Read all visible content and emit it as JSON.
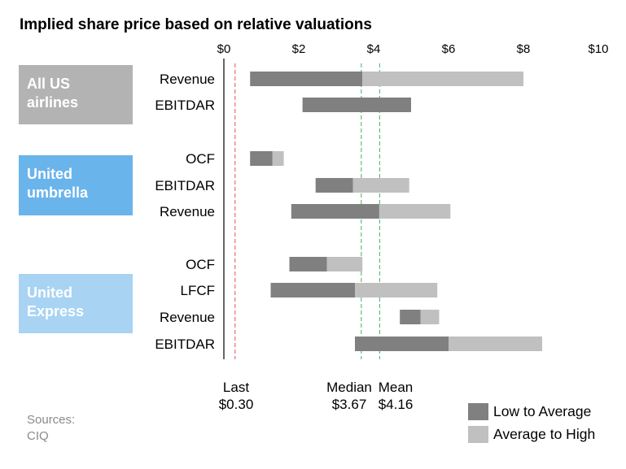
{
  "chart_data": {
    "type": "bar",
    "subtype": "floating-range",
    "title": "Implied share price based on relative valuations",
    "x_axis": {
      "range": [
        0,
        10
      ],
      "ticks": [
        0,
        2,
        4,
        6,
        8,
        10
      ],
      "tick_labels": [
        "$0",
        "$2",
        "$4",
        "$6",
        "$8",
        "$10"
      ],
      "position": "top"
    },
    "groups": [
      {
        "name": "All US airlines",
        "color": "#b3b3b3",
        "rows": [
          {
            "label": "Revenue",
            "low": 0.7,
            "average": 3.7,
            "high": 8.0
          },
          {
            "label": "EBITDAR",
            "low": 2.1,
            "average": 5.0,
            "high": 5.0
          }
        ]
      },
      {
        "name": "United umbrella",
        "color": "#6ab4ec",
        "rows": [
          {
            "label": "OCF",
            "low": 0.7,
            "average": 1.3,
            "high": 1.6
          },
          {
            "label": "EBITDAR",
            "low": 2.45,
            "average": 3.45,
            "high": 4.95
          },
          {
            "label": "Revenue",
            "low": 1.8,
            "average": 4.15,
            "high": 6.05
          }
        ]
      },
      {
        "name": "United Express",
        "color": "#a8d3f3",
        "rows": [
          {
            "label": "OCF",
            "low": 1.75,
            "average": 2.75,
            "high": 3.7
          },
          {
            "label": "LFCF",
            "low": 1.25,
            "average": 3.5,
            "high": 5.7
          },
          {
            "label": "Revenue",
            "low": 4.7,
            "average": 5.25,
            "high": 5.75
          },
          {
            "label": "EBITDAR",
            "low": 3.5,
            "average": 6.0,
            "high": 8.5
          }
        ]
      }
    ],
    "reference_lines": [
      {
        "name": "Last",
        "value": 0.3,
        "value_label": "$0.30",
        "color": "#e05050"
      },
      {
        "name": "Median",
        "value": 3.67,
        "value_label": "$3.67",
        "color": "#40b060"
      },
      {
        "name": "Mean",
        "value": 4.16,
        "value_label": "$4.16",
        "color": "#40b060"
      }
    ],
    "legend": {
      "placement": "bottom-right",
      "items": [
        {
          "label": "Low to Average",
          "color": "#808080"
        },
        {
          "label": "Average to High",
          "color": "#c0c0c0"
        }
      ]
    },
    "colors": {
      "low_to_average": "#808080",
      "average_to_high": "#c0c0c0"
    }
  },
  "sources": {
    "label": "Sources:",
    "value": "CIQ"
  }
}
